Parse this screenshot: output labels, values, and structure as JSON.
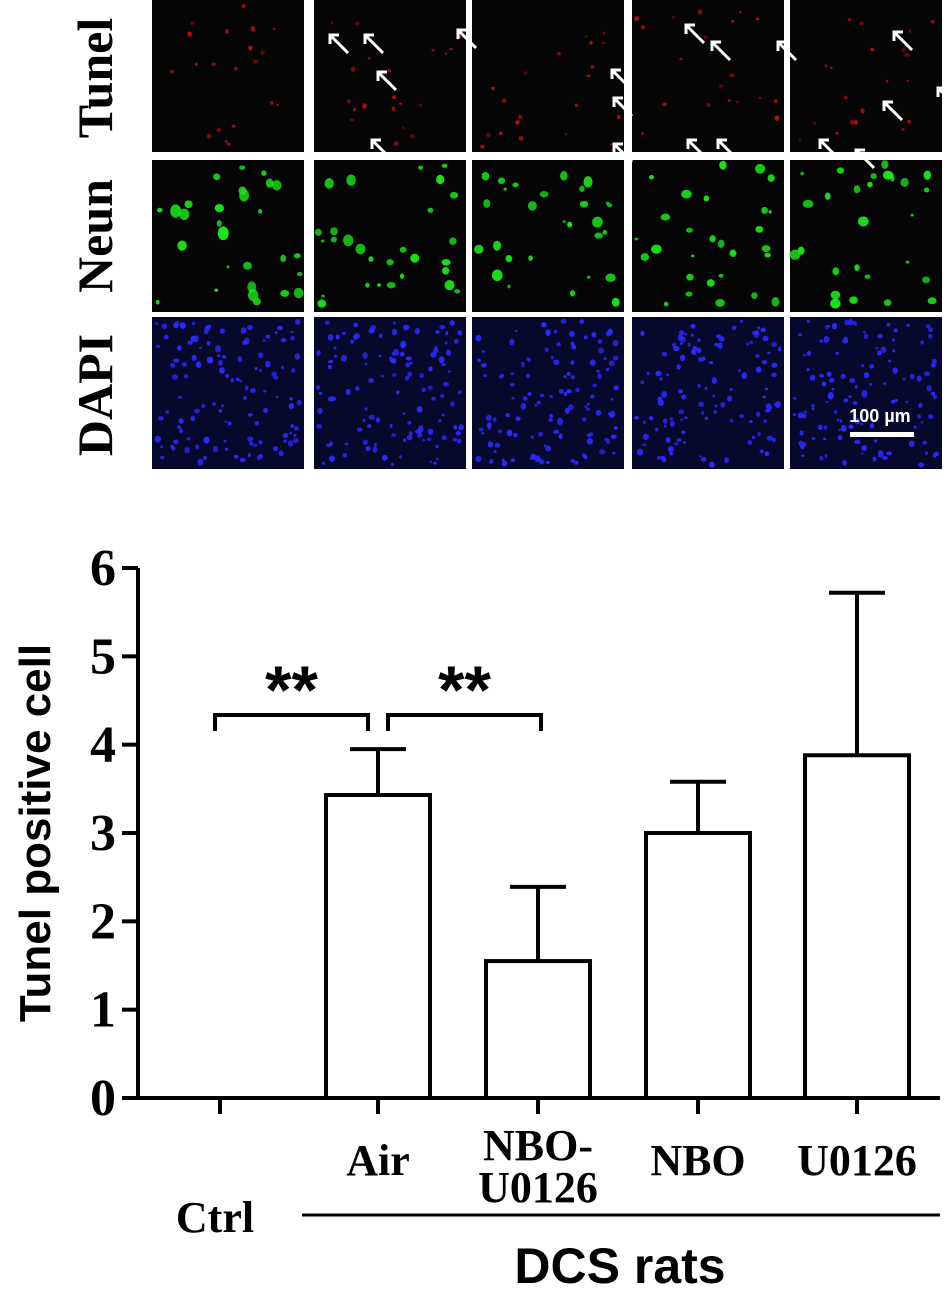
{
  "micrograph": {
    "rows": [
      {
        "label": "Tunel",
        "color": "#e01010"
      },
      {
        "label": "Neun",
        "color": "#19e619"
      },
      {
        "label": "DAPI",
        "color": "#2a2aff"
      }
    ],
    "columns": 5,
    "scale_bar_label": "100 µm"
  },
  "chart_data": {
    "type": "bar",
    "categories": [
      "Ctrl",
      "Air",
      "NBO-\nU0126",
      "NBO",
      "U0126"
    ],
    "values": [
      0,
      3.43,
      1.55,
      3.0,
      3.88
    ],
    "errors": [
      0,
      0.52,
      0.84,
      0.58,
      1.84
    ],
    "ylabel": "Tunel positive cell",
    "ylim": [
      0,
      6
    ],
    "yticks": [
      0,
      1,
      2,
      3,
      4,
      5,
      6
    ],
    "group_label": "DCS rats",
    "grid": false,
    "significance": [
      {
        "from": 0,
        "to": 1,
        "label": "**"
      },
      {
        "from": 1,
        "to": 2,
        "label": "**"
      }
    ]
  }
}
